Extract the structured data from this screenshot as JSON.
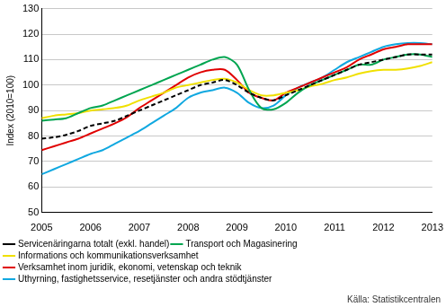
{
  "chart_data": {
    "type": "line",
    "y_label": "Index (2010=100)",
    "annotation": "Källa: Statistikcentralen",
    "x": [
      2005,
      2005.25,
      2005.5,
      2005.75,
      2006,
      2006.25,
      2006.5,
      2006.75,
      2007,
      2007.25,
      2007.5,
      2007.75,
      2008,
      2008.25,
      2008.5,
      2008.75,
      2009,
      2009.25,
      2009.5,
      2009.75,
      2010,
      2010.25,
      2010.5,
      2010.75,
      2011,
      2011.25,
      2011.5,
      2011.75,
      2012,
      2012.25,
      2012.5,
      2012.75,
      2013
    ],
    "xlim": [
      2005,
      2013
    ],
    "xticks": [
      2005,
      2006,
      2007,
      2008,
      2009,
      2010,
      2011,
      2012,
      2013
    ],
    "ylim": [
      50,
      130
    ],
    "yticks": [
      50,
      60,
      70,
      80,
      90,
      100,
      110,
      120,
      130
    ],
    "grid": true,
    "legend": "bottom",
    "series": [
      {
        "name": "Servicenäringarna totalt (exkl. handel)",
        "color": "#000000",
        "line_style": "dashed",
        "values": [
          79,
          79.5,
          80.5,
          82,
          84,
          85,
          86,
          88,
          90,
          92,
          94,
          96,
          98,
          100,
          101,
          102,
          100,
          97,
          95,
          94,
          96,
          98,
          100,
          102,
          104,
          106,
          108,
          109,
          110,
          111,
          112,
          112,
          112
        ]
      },
      {
        "name": "Transport och Magasinering",
        "color": "#00a550",
        "line_style": "solid",
        "values": [
          86,
          86.5,
          87,
          89,
          91,
          92,
          94,
          96,
          98,
          100,
          102,
          104,
          106,
          108,
          110,
          111,
          108,
          98,
          91,
          90.5,
          93,
          97,
          100,
          102,
          104,
          106,
          108,
          108,
          110,
          111,
          112,
          112,
          111
        ]
      },
      {
        "name": "Informations och kommunikationsverksamhet",
        "color": "#f0e000",
        "line_style": "solid",
        "values": [
          87,
          88,
          88.5,
          89,
          90,
          90.5,
          91,
          92,
          94,
          95.5,
          97,
          99,
          100,
          101,
          102,
          102.5,
          101,
          98,
          96,
          96,
          97,
          98,
          99.5,
          100.5,
          102,
          103,
          104.5,
          105.5,
          106,
          106,
          106.5,
          107.5,
          109
        ]
      },
      {
        "name": "Verksamhet inom juridik, ekonomi, vetenskap och teknik",
        "color": "#e00000",
        "line_style": "solid",
        "values": [
          74.5,
          76,
          77.5,
          79,
          81,
          83,
          85,
          87.5,
          91,
          94,
          97,
          100,
          103,
          105,
          106,
          106,
          102,
          97,
          95,
          94,
          97,
          99,
          101,
          103,
          105,
          107,
          110,
          112,
          114,
          115,
          116,
          116,
          116
        ]
      },
      {
        "name": "Uthyrning, fastighetsservice, resetjänster och andra stödtjänster",
        "color": "#10a8e0",
        "line_style": "solid",
        "values": [
          65,
          67,
          69,
          71,
          73,
          74.5,
          77,
          79.5,
          82,
          85,
          88,
          91,
          95,
          97,
          98,
          99,
          97,
          93,
          91,
          92,
          96,
          99,
          101,
          103,
          106,
          109,
          111,
          113,
          115,
          116,
          116.5,
          116.5,
          116
        ]
      }
    ]
  }
}
